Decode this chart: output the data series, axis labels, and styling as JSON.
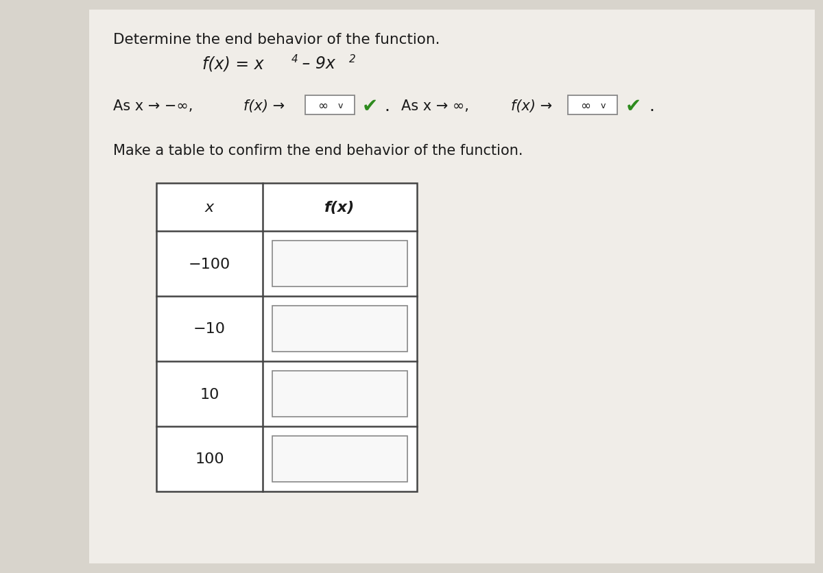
{
  "title": "Determine the end behavior of the function.",
  "function_str_plain": "f(x) = x",
  "function_exp4": "4",
  "function_mid": " – 9x",
  "function_exp2": "2",
  "end_left_1": "As x → −∞,",
  "end_left_2": "f(x) →",
  "dropdown_val": "∞",
  "end_right_1": "As x → ∞,",
  "end_right_2": "f(x) →",
  "table_prompt": "Make a table to confirm the end behavior of the function.",
  "col_x": "x",
  "col_fx": "f(x)",
  "x_values": [
    "−100",
    "−10",
    "10",
    "100"
  ],
  "bg_color": "#d8d4cc",
  "card_color": "#f0ede8",
  "white": "#ffffff",
  "border_color": "#444444",
  "text_dark": "#1a1a1a",
  "check_green": "#2e8b1e",
  "dropdown_border_color": "#888888",
  "input_box_color": "#f8f8f8"
}
